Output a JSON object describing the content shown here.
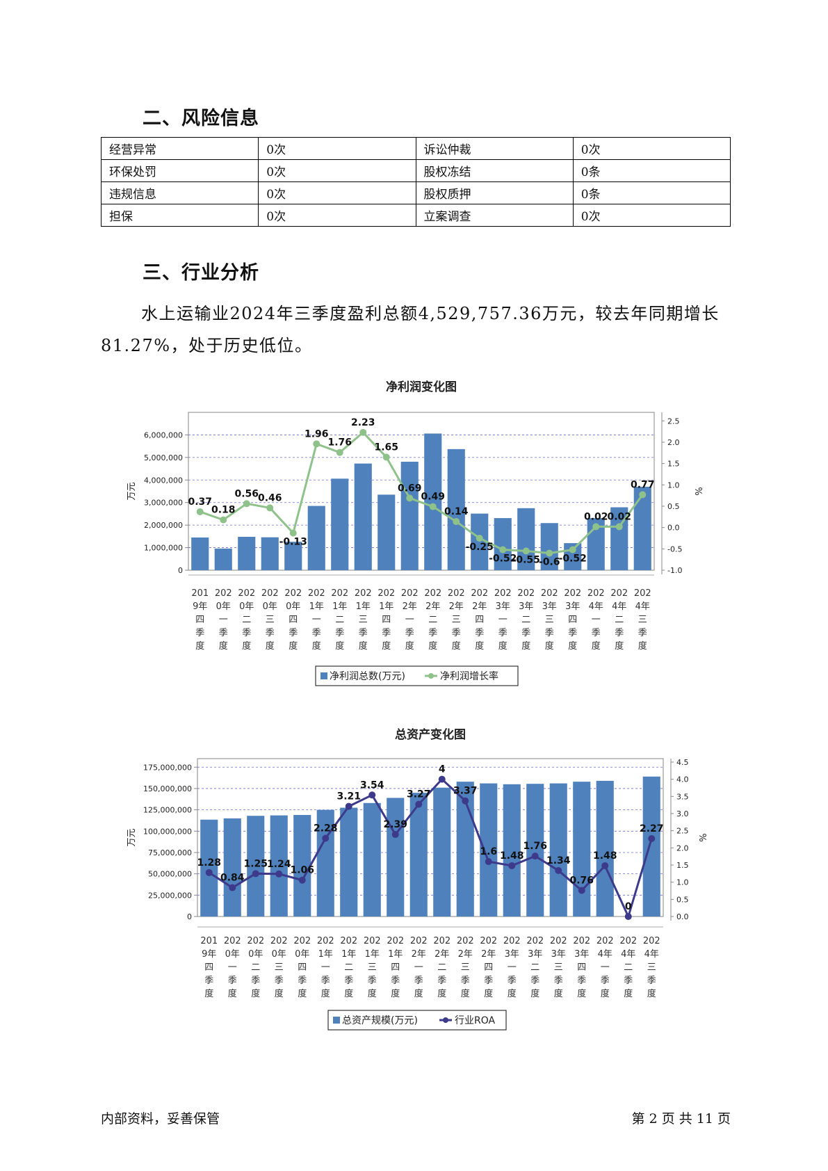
{
  "section2": {
    "heading": "二、风险信息"
  },
  "risk_table": {
    "rows": [
      [
        "经营异常",
        "0次",
        "诉讼仲裁",
        "0次"
      ],
      [
        "环保处罚",
        "0次",
        "股权冻结",
        "0条"
      ],
      [
        "违规信息",
        "0次",
        "股权质押",
        "0条"
      ],
      [
        "担保",
        "0次",
        "立案调查",
        "0次"
      ]
    ]
  },
  "section3": {
    "heading": "三、行业分析",
    "paragraph": "水上运输业2024年三季度盈利总额4,529,757.36万元，较去年同期增长81.27%，处于历史低位。"
  },
  "footer": {
    "left": "内部资料，妥善保管",
    "right": "第 2 页   共 11 页"
  },
  "colors": {
    "bar": "#4f81bd",
    "profit_line": "#8fc28a",
    "roa_line": "#3d3a8c"
  },
  "chart_data": [
    {
      "type": "bar",
      "title": "净利润变化图",
      "categories": [
        "2019年四季度",
        "2020年一季度",
        "2020年二季度",
        "2020年三季度",
        "2020年四季度",
        "2021年一季度",
        "2021年二季度",
        "2021年三季度",
        "2021年四季度",
        "2022年一季度",
        "2022年二季度",
        "2022年三季度",
        "2022年四季度",
        "2023年一季度",
        "2023年二季度",
        "2023年三季度",
        "2023年四季度",
        "2024年一季度",
        "2024年二季度",
        "2024年三季度"
      ],
      "y_left_label": "万元",
      "y_right_label": "%",
      "y_left_range": [
        0,
        7000000
      ],
      "y_left_ticks": [
        "0",
        "1,000,000",
        "2,000,000",
        "3,000,000",
        "4,000,000",
        "5,000,000",
        "6,000,000"
      ],
      "y_right_range": [
        -1.0,
        2.7
      ],
      "y_right_ticks": [
        "-1.0",
        "-0.5",
        "0.0",
        "0.5",
        "1.0",
        "1.5",
        "2.0",
        "2.5"
      ],
      "series": [
        {
          "name": "净利润总数(万元)",
          "kind": "bar",
          "values": [
            1450000,
            960000,
            1480000,
            1460000,
            1260000,
            2850000,
            4060000,
            4730000,
            3350000,
            4810000,
            6060000,
            5370000,
            2510000,
            2310000,
            2750000,
            2090000,
            1200000,
            2310000,
            2790000,
            3700000
          ]
        },
        {
          "name": "净利润增长率",
          "kind": "line",
          "values": [
            0.37,
            0.18,
            0.56,
            0.46,
            -0.13,
            1.96,
            1.76,
            2.23,
            1.65,
            0.69,
            0.49,
            0.14,
            -0.25,
            -0.52,
            -0.55,
            -0.6,
            -0.52,
            0.02,
            0.02,
            0.77
          ],
          "labels": [
            "0.37",
            "0.18",
            "0.56",
            "0.46",
            "-0.13",
            "1.96",
            "1.76",
            "2.23",
            "1.65",
            "0.69",
            "0.49",
            "0.14",
            "-0.25",
            "-0.52",
            "-0.55",
            "-0.6",
            "-0.52",
            "0.02",
            "0.02",
            "0.77"
          ]
        }
      ],
      "legend": "bottom"
    },
    {
      "type": "bar",
      "title": "总资产变化图",
      "categories": [
        "2019年四季度",
        "2020年一季度",
        "2020年二季度",
        "2020年三季度",
        "2020年四季度",
        "2021年一季度",
        "2021年二季度",
        "2021年三季度",
        "2021年四季度",
        "2022年一季度",
        "2022年二季度",
        "2022年三季度",
        "2022年四季度",
        "2023年一季度",
        "2023年二季度",
        "2023年三季度",
        "2023年四季度",
        "2024年一季度",
        "2024年二季度",
        "2024年三季度"
      ],
      "y_left_label": "万元",
      "y_right_label": "%",
      "y_left_range": [
        0,
        185000000
      ],
      "y_left_ticks": [
        "0",
        "25,000,000",
        "50,000,000",
        "75,000,000",
        "100,000,000",
        "125,000,000",
        "150,000,000",
        "175,000,000"
      ],
      "y_right_range": [
        0,
        4.6
      ],
      "y_right_ticks": [
        "0.0",
        "0.5",
        "1.0",
        "1.5",
        "2.0",
        "2.5",
        "3.0",
        "3.5",
        "4.0",
        "4.5"
      ],
      "series": [
        {
          "name": "总资产规模(万元)",
          "kind": "bar",
          "values": [
            113500000,
            115000000,
            118000000,
            118500000,
            119000000,
            125000000,
            127500000,
            133000000,
            139000000,
            145000000,
            151000000,
            158000000,
            156000000,
            155000000,
            155500000,
            156000000,
            158000000,
            159000000,
            0,
            164000000
          ]
        },
        {
          "name": "行业ROA",
          "kind": "line",
          "values": [
            1.28,
            0.84,
            1.25,
            1.24,
            1.06,
            2.28,
            3.21,
            3.54,
            2.39,
            3.27,
            4,
            3.37,
            1.6,
            1.48,
            1.76,
            1.34,
            0.76,
            1.48,
            0,
            2.27
          ],
          "labels": [
            "1.28",
            "0.84",
            "1.25",
            "1.24",
            "1.06",
            "2.28",
            "3.21",
            "3.54",
            "2.39",
            "3.27",
            "4",
            "3.37",
            "1.6",
            "1.48",
            "1.76",
            "1.34",
            "0.76",
            "1.48",
            "0",
            "2.27"
          ]
        }
      ],
      "legend": "bottom"
    }
  ]
}
